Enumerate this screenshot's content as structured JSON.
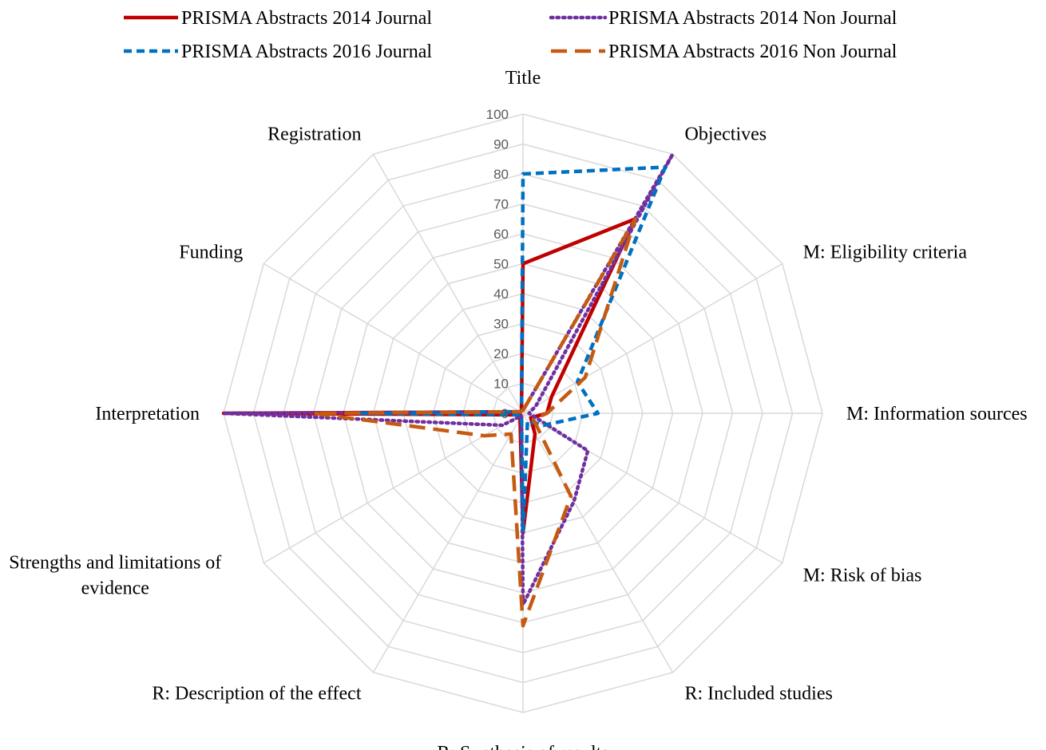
{
  "chart_data": {
    "type": "radar",
    "axes": [
      "Title",
      "Objectives",
      "M: Eligibility criteria",
      "M: Information sources",
      "M: Risk of bias",
      "R: Included studies",
      "R: Synthesis of results",
      "R: Description of the effect",
      "Strengths and limitations of evidence",
      "Interpretation",
      "Funding",
      "Registration"
    ],
    "axis_label_lines": [
      [
        "Title"
      ],
      [
        "Objectives"
      ],
      [
        "M: Eligibility criteria"
      ],
      [
        "M: Information sources"
      ],
      [
        "M: Risk of bias"
      ],
      [
        "R: Included studies"
      ],
      [
        "R: Synthesis of results"
      ],
      [
        "R: Description of the effect"
      ],
      [
        "Strengths and limitations of",
        "evidence"
      ],
      [
        "Interpretation"
      ],
      [
        "Funding"
      ],
      [
        "Registration"
      ]
    ],
    "rlim": [
      0,
      100
    ],
    "ticks": [
      0,
      10,
      20,
      30,
      40,
      50,
      60,
      70,
      80,
      90,
      100
    ],
    "grid": true,
    "legend_position": "top",
    "series": [
      {
        "name": "PRISMA Abstracts 2014 Journal",
        "color": "#c00000",
        "dash": "solid",
        "values": [
          50,
          75,
          11,
          8,
          3,
          8,
          40,
          2,
          1,
          100,
          1,
          1
        ]
      },
      {
        "name": "PRISMA Abstracts 2014 Non Journal",
        "color": "#7030a0",
        "dash": "dotted",
        "values": [
          1,
          100,
          5,
          2,
          25,
          34,
          64,
          1,
          8,
          100,
          1,
          1
        ]
      },
      {
        "name": "PRISMA Abstracts 2016 Journal",
        "color": "#0070c0",
        "dash": "dashed",
        "values": [
          80,
          95,
          21,
          25,
          8,
          3,
          40,
          1,
          1,
          55,
          1,
          1
        ]
      },
      {
        "name": "PRISMA Abstracts 2016 Non Journal",
        "color": "#c55a11",
        "dash": "longdash",
        "values": [
          1,
          75,
          24,
          8,
          4,
          32,
          71,
          8,
          15,
          70,
          1,
          1
        ]
      }
    ]
  }
}
